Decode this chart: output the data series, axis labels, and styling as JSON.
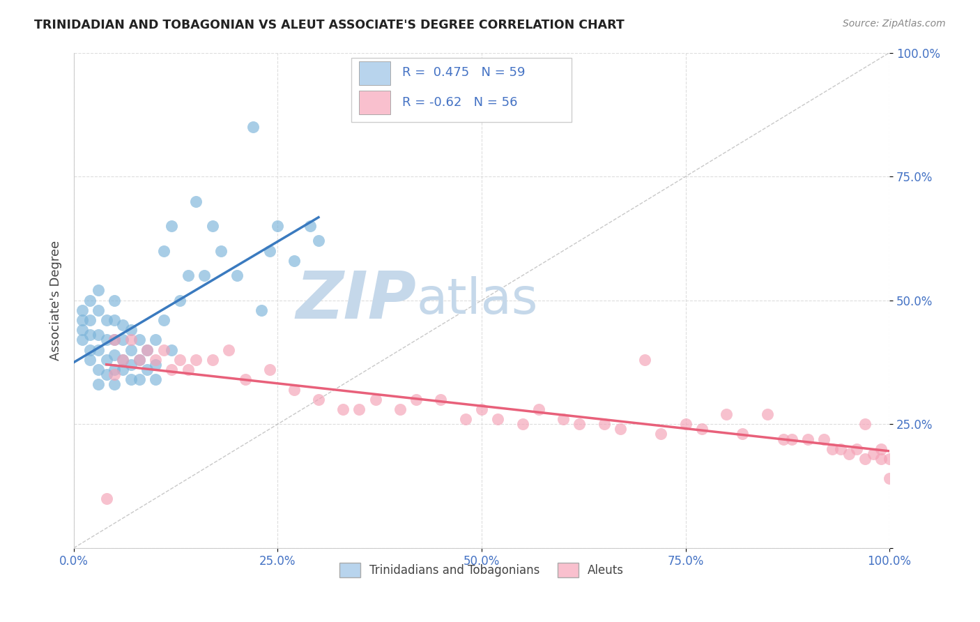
{
  "title": "TRINIDADIAN AND TOBAGONIAN VS ALEUT ASSOCIATE'S DEGREE CORRELATION CHART",
  "source": "Source: ZipAtlas.com",
  "ylabel": "Associate's Degree",
  "xlim": [
    0.0,
    1.0
  ],
  "ylim": [
    0.0,
    1.0
  ],
  "xtick_vals": [
    0.0,
    0.25,
    0.5,
    0.75,
    1.0
  ],
  "ytick_vals": [
    0.0,
    0.25,
    0.5,
    0.75,
    1.0
  ],
  "xtick_labels": [
    "0.0%",
    "25.0%",
    "50.0%",
    "75.0%",
    "100.0%"
  ],
  "ytick_labels": [
    "",
    "25.0%",
    "50.0%",
    "75.0%",
    "100.0%"
  ],
  "blue_color": "#7ab3d9",
  "pink_color": "#f4a0b5",
  "blue_line_color": "#3a7abf",
  "pink_line_color": "#e8607a",
  "legend_blue_color": "#b8d4ed",
  "legend_pink_color": "#f9c0ce",
  "R_blue": 0.475,
  "N_blue": 59,
  "R_pink": -0.62,
  "N_pink": 56,
  "watermark_zip": "ZIP",
  "watermark_atlas": "atlas",
  "watermark_color_zip": "#c5d8ea",
  "watermark_color_atlas": "#c5d8ea",
  "grid_color": "#dddddd",
  "title_color": "#222222",
  "tick_color": "#4472C4",
  "blue_scatter_x": [
    0.01,
    0.01,
    0.01,
    0.01,
    0.02,
    0.02,
    0.02,
    0.02,
    0.02,
    0.03,
    0.03,
    0.03,
    0.03,
    0.03,
    0.03,
    0.04,
    0.04,
    0.04,
    0.04,
    0.05,
    0.05,
    0.05,
    0.05,
    0.05,
    0.05,
    0.06,
    0.06,
    0.06,
    0.06,
    0.07,
    0.07,
    0.07,
    0.07,
    0.08,
    0.08,
    0.08,
    0.09,
    0.09,
    0.1,
    0.1,
    0.1,
    0.11,
    0.11,
    0.12,
    0.12,
    0.13,
    0.14,
    0.15,
    0.16,
    0.17,
    0.18,
    0.2,
    0.22,
    0.23,
    0.24,
    0.25,
    0.27,
    0.29,
    0.3
  ],
  "blue_scatter_y": [
    0.42,
    0.44,
    0.46,
    0.48,
    0.38,
    0.4,
    0.43,
    0.46,
    0.5,
    0.33,
    0.36,
    0.4,
    0.43,
    0.48,
    0.52,
    0.35,
    0.38,
    0.42,
    0.46,
    0.33,
    0.36,
    0.39,
    0.42,
    0.46,
    0.5,
    0.36,
    0.38,
    0.42,
    0.45,
    0.34,
    0.37,
    0.4,
    0.44,
    0.34,
    0.38,
    0.42,
    0.36,
    0.4,
    0.34,
    0.37,
    0.42,
    0.46,
    0.6,
    0.4,
    0.65,
    0.5,
    0.55,
    0.7,
    0.55,
    0.65,
    0.6,
    0.55,
    0.85,
    0.48,
    0.6,
    0.65,
    0.58,
    0.65,
    0.62
  ],
  "pink_scatter_x": [
    0.04,
    0.05,
    0.05,
    0.06,
    0.07,
    0.08,
    0.09,
    0.1,
    0.11,
    0.12,
    0.13,
    0.14,
    0.15,
    0.17,
    0.19,
    0.21,
    0.24,
    0.27,
    0.3,
    0.33,
    0.35,
    0.37,
    0.4,
    0.42,
    0.45,
    0.48,
    0.5,
    0.52,
    0.55,
    0.57,
    0.6,
    0.62,
    0.65,
    0.67,
    0.7,
    0.72,
    0.75,
    0.77,
    0.8,
    0.82,
    0.85,
    0.87,
    0.88,
    0.9,
    0.92,
    0.93,
    0.94,
    0.95,
    0.96,
    0.97,
    0.97,
    0.98,
    0.99,
    0.99,
    1.0,
    1.0
  ],
  "pink_scatter_y": [
    0.1,
    0.42,
    0.35,
    0.38,
    0.42,
    0.38,
    0.4,
    0.38,
    0.4,
    0.36,
    0.38,
    0.36,
    0.38,
    0.38,
    0.4,
    0.34,
    0.36,
    0.32,
    0.3,
    0.28,
    0.28,
    0.3,
    0.28,
    0.3,
    0.3,
    0.26,
    0.28,
    0.26,
    0.25,
    0.28,
    0.26,
    0.25,
    0.25,
    0.24,
    0.38,
    0.23,
    0.25,
    0.24,
    0.27,
    0.23,
    0.27,
    0.22,
    0.22,
    0.22,
    0.22,
    0.2,
    0.2,
    0.19,
    0.2,
    0.18,
    0.25,
    0.19,
    0.18,
    0.2,
    0.18,
    0.14
  ]
}
